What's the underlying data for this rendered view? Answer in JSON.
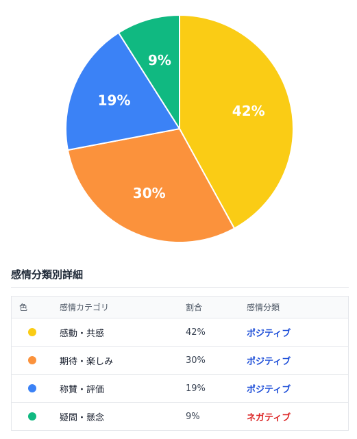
{
  "chart_data": {
    "type": "pie",
    "categories": [
      "感動・共感",
      "期待・楽しみ",
      "称賛・評価",
      "疑問・懸念"
    ],
    "values": [
      42,
      30,
      19,
      9
    ],
    "colors": [
      "#facc15",
      "#fb923c",
      "#3b82f6",
      "#10b981"
    ],
    "slice_labels": [
      "42%",
      "30%",
      "19%",
      "9%"
    ]
  },
  "section": {
    "title": "感情分類別詳細"
  },
  "table": {
    "headers": {
      "color": "色",
      "category": "感情カテゴリ",
      "ratio": "割合",
      "type": "感情分類"
    },
    "rows": [
      {
        "color": "#facc15",
        "category": "感動・共感",
        "ratio": "42%",
        "type": "ポジティブ",
        "type_color": "#1d4ed8"
      },
      {
        "color": "#fb923c",
        "category": "期待・楽しみ",
        "ratio": "30%",
        "type": "ポジティブ",
        "type_color": "#1d4ed8"
      },
      {
        "color": "#3b82f6",
        "category": "称賛・評価",
        "ratio": "19%",
        "type": "ポジティブ",
        "type_color": "#1d4ed8"
      },
      {
        "color": "#10b981",
        "category": "疑問・懸念",
        "ratio": "9%",
        "type": "ネガティブ",
        "type_color": "#dc2626"
      }
    ]
  }
}
